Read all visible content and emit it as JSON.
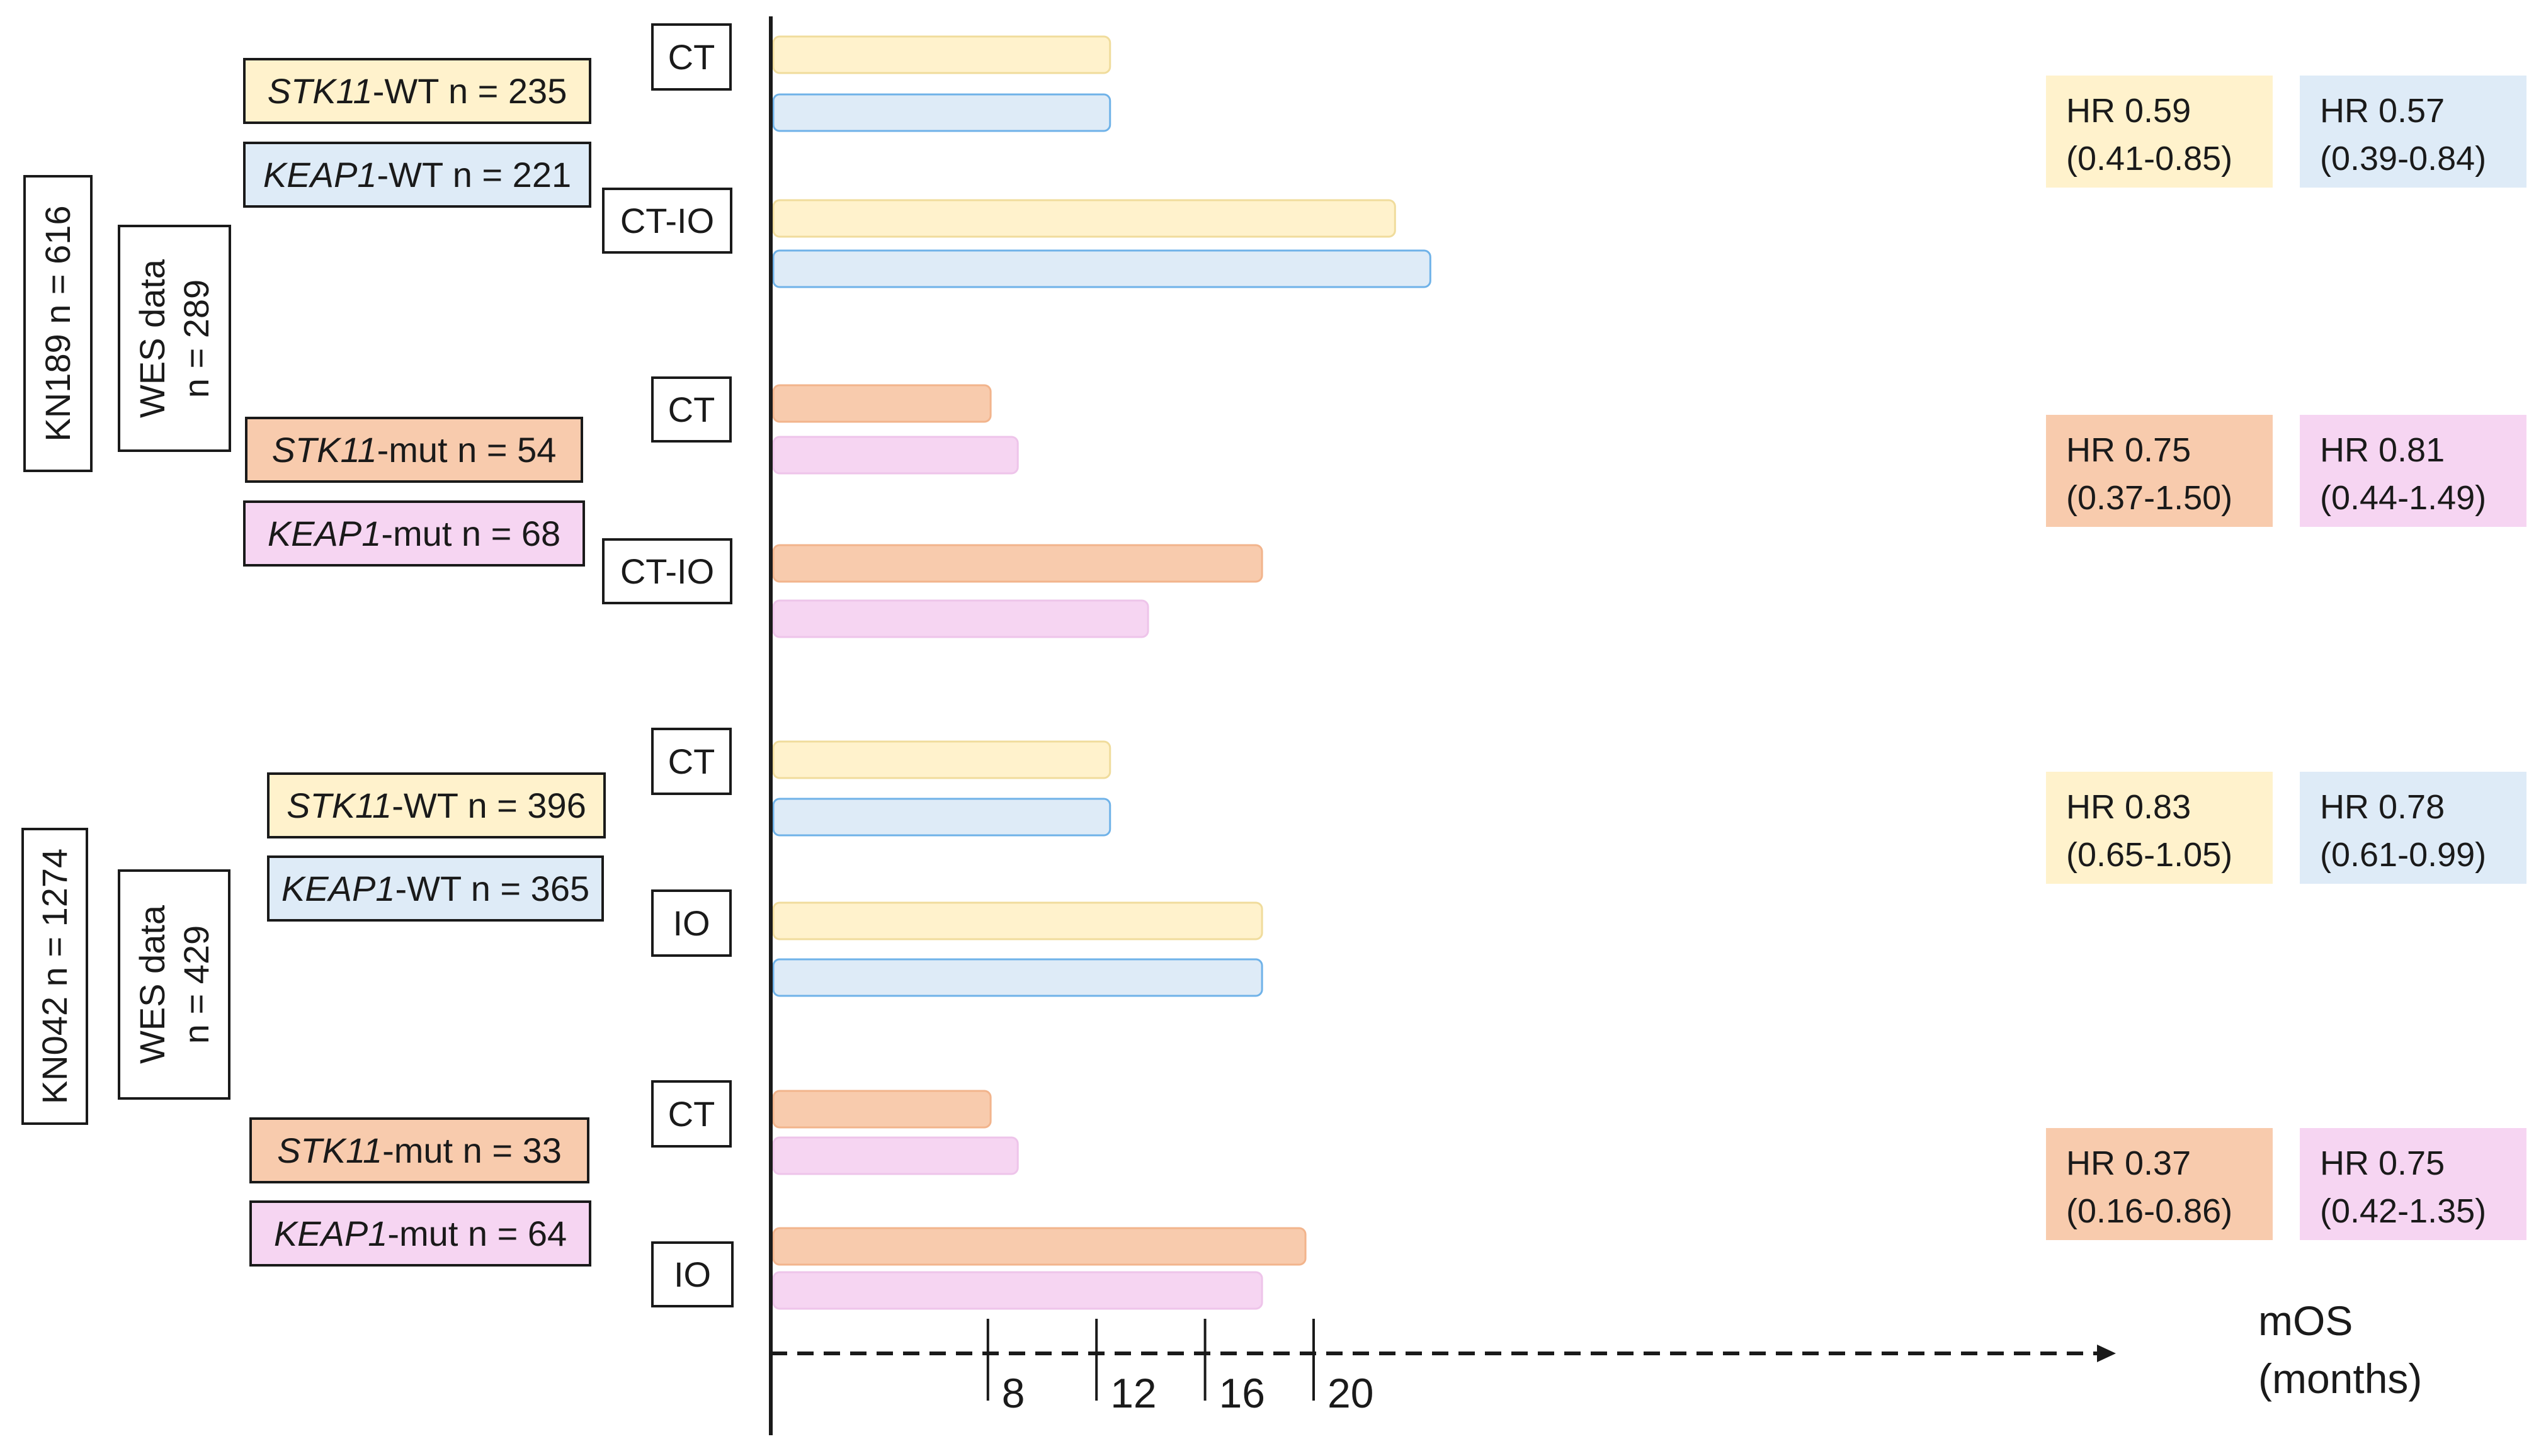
{
  "colors": {
    "stk11_wt_fill": "#fff2cc",
    "stk11_wt_stroke": "#f0dc9c",
    "keap1_wt_fill": "#deebf7",
    "keap1_wt_stroke": "#6fb2e8",
    "stk11_mut_fill": "#f8cbad",
    "stk11_mut_stroke": "#f2b48c",
    "keap1_mut_fill": "#f6d5f2",
    "keap1_mut_stroke": "#eec4ea"
  },
  "trials": [
    {
      "name": "KN189 n = 616",
      "wes_line1": "WES data",
      "wes_line2": "n = 289",
      "groups": [
        {
          "labels": [
            {
              "gene": "STK11",
              "rest": "-WT n = 235"
            },
            {
              "gene": "KEAP1",
              "rest": "-WT n = 221"
            }
          ],
          "arms": [
            "CT",
            "CT-IO"
          ],
          "hr": [
            {
              "line1": "HR 0.59",
              "line2": "(0.41-0.85)"
            },
            {
              "line1": "HR 0.57",
              "line2": "(0.39-0.84)"
            }
          ]
        },
        {
          "labels": [
            {
              "gene": "STK11",
              "rest": "-mut n = 54"
            },
            {
              "gene": "KEAP1",
              "rest": "-mut  n = 68"
            }
          ],
          "arms": [
            "CT",
            "CT-IO"
          ],
          "hr": [
            {
              "line1": "HR 0.75",
              "line2": "(0.37-1.50)"
            },
            {
              "line1": "HR 0.81",
              "line2": "(0.44-1.49)"
            }
          ]
        }
      ]
    },
    {
      "name": "KN042  n = 1274",
      "wes_line1": "WES data",
      "wes_line2": "n = 429",
      "groups": [
        {
          "labels": [
            {
              "gene": "STK11",
              "rest": "-WT n = 396"
            },
            {
              "gene": "KEAP1",
              "rest": "-WT n = 365"
            }
          ],
          "arms": [
            "CT",
            "IO"
          ],
          "hr": [
            {
              "line1": "HR 0.83",
              "line2": "(0.65-1.05)"
            },
            {
              "line1": "HR 0.78",
              "line2": "(0.61-0.99)"
            }
          ]
        },
        {
          "labels": [
            {
              "gene": "STK11",
              "rest": "-mut n = 33"
            },
            {
              "gene": "KEAP1",
              "rest": "-mut n = 64"
            }
          ],
          "arms": [
            "CT",
            "IO"
          ],
          "hr": [
            {
              "line1": "HR 0.37",
              "line2": "(0.16-0.86)"
            },
            {
              "line1": "HR 0.75",
              "line2": "(0.42-1.35)"
            }
          ]
        }
      ]
    }
  ],
  "axis": {
    "unit_line1": "mOS",
    "unit_line2": "(months)"
  },
  "chart_data": {
    "type": "bar",
    "orientation": "horizontal",
    "xlabel": "mOS (months)",
    "xticks": [
      8,
      12,
      16,
      20
    ],
    "xlim": [
      0,
      26
    ],
    "grid": false,
    "bars": [
      {
        "trial": "KN189",
        "subgroup": "STK11-WT",
        "arm": "CT",
        "value": 12.5,
        "color": "stk11_wt"
      },
      {
        "trial": "KN189",
        "subgroup": "KEAP1-WT",
        "arm": "CT",
        "value": 12.5,
        "color": "keap1_wt"
      },
      {
        "trial": "KN189",
        "subgroup": "STK11-WT",
        "arm": "CT-IO",
        "value": 23.0,
        "color": "stk11_wt"
      },
      {
        "trial": "KN189",
        "subgroup": "KEAP1-WT",
        "arm": "CT-IO",
        "value": 24.3,
        "color": "keap1_wt"
      },
      {
        "trial": "KN189",
        "subgroup": "STK11-mut",
        "arm": "CT",
        "value": 8.1,
        "color": "stk11_mut"
      },
      {
        "trial": "KN189",
        "subgroup": "KEAP1-mut",
        "arm": "CT",
        "value": 9.1,
        "color": "keap1_mut"
      },
      {
        "trial": "KN189",
        "subgroup": "STK11-mut",
        "arm": "CT-IO",
        "value": 18.1,
        "color": "stk11_mut"
      },
      {
        "trial": "KN189",
        "subgroup": "KEAP1-mut",
        "arm": "CT-IO",
        "value": 13.9,
        "color": "keap1_mut"
      },
      {
        "trial": "KN042",
        "subgroup": "STK11-WT",
        "arm": "CT",
        "value": 12.5,
        "color": "stk11_wt"
      },
      {
        "trial": "KN042",
        "subgroup": "KEAP1-WT",
        "arm": "CT",
        "value": 12.5,
        "color": "keap1_wt"
      },
      {
        "trial": "KN042",
        "subgroup": "STK11-WT",
        "arm": "IO",
        "value": 18.1,
        "color": "stk11_wt"
      },
      {
        "trial": "KN042",
        "subgroup": "KEAP1-WT",
        "arm": "IO",
        "value": 18.1,
        "color": "keap1_wt"
      },
      {
        "trial": "KN042",
        "subgroup": "STK11-mut",
        "arm": "CT",
        "value": 8.1,
        "color": "stk11_mut"
      },
      {
        "trial": "KN042",
        "subgroup": "KEAP1-mut",
        "arm": "CT",
        "value": 9.1,
        "color": "keap1_mut"
      },
      {
        "trial": "KN042",
        "subgroup": "STK11-mut",
        "arm": "IO",
        "value": 19.7,
        "color": "stk11_mut"
      },
      {
        "trial": "KN042",
        "subgroup": "KEAP1-mut",
        "arm": "IO",
        "value": 18.1,
        "color": "keap1_mut"
      }
    ]
  }
}
